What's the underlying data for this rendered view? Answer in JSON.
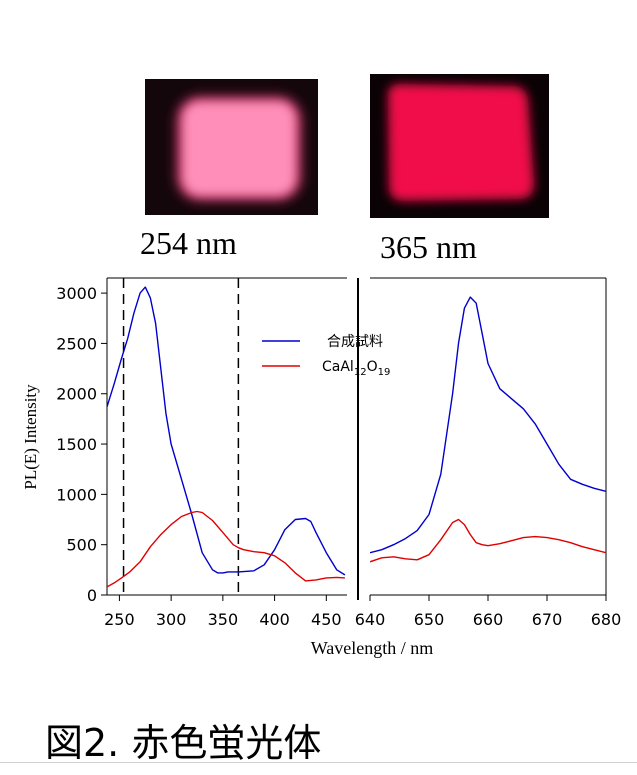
{
  "photos": [
    {
      "label": "254 nm",
      "glow_color": "#ff8fb8",
      "background": "#14070b"
    },
    {
      "label": "365 nm",
      "glow_color": "#f0104a",
      "background": "#0a0204"
    }
  ],
  "chart_data": [
    {
      "type": "line",
      "panel": "excitation",
      "ylabel": "PL(E) Intensity",
      "xlabel": "Wavelength / nm",
      "xlim": [
        238,
        470
      ],
      "ylim": [
        0,
        3150
      ],
      "x_ticks": [
        250,
        300,
        350,
        400,
        450
      ],
      "y_ticks": [
        0,
        500,
        1000,
        1500,
        2000,
        2500,
        3000
      ],
      "vlines": [
        254,
        365
      ],
      "legend_position": "top-right",
      "series": [
        {
          "name": "合成試料",
          "color": "#0000cc",
          "x": [
            238,
            245,
            252,
            258,
            264,
            270,
            275,
            280,
            285,
            290,
            295,
            300,
            310,
            320,
            330,
            340,
            345,
            350,
            355,
            360,
            365,
            380,
            390,
            400,
            410,
            420,
            430,
            435,
            440,
            450,
            460,
            468
          ],
          "y": [
            1870,
            2100,
            2350,
            2550,
            2800,
            3000,
            3060,
            2950,
            2700,
            2250,
            1800,
            1500,
            1150,
            800,
            420,
            250,
            220,
            220,
            230,
            230,
            230,
            240,
            300,
            450,
            650,
            750,
            760,
            730,
            620,
            420,
            250,
            200
          ]
        },
        {
          "name": "CaAl12O19",
          "color": "#e00000",
          "x": [
            238,
            245,
            252,
            260,
            270,
            280,
            290,
            300,
            310,
            320,
            325,
            330,
            340,
            350,
            360,
            365,
            370,
            380,
            390,
            400,
            410,
            420,
            430,
            440,
            450,
            460,
            468
          ],
          "y": [
            80,
            120,
            170,
            230,
            330,
            480,
            600,
            700,
            780,
            820,
            830,
            820,
            740,
            620,
            500,
            470,
            450,
            430,
            420,
            390,
            320,
            220,
            140,
            150,
            170,
            175,
            170
          ]
        }
      ]
    },
    {
      "type": "line",
      "panel": "emission",
      "xlabel": "Wavelength / nm",
      "xlim": [
        640,
        680
      ],
      "ylim": [
        0,
        3150
      ],
      "x_ticks": [
        640,
        650,
        660,
        670,
        680
      ],
      "series": [
        {
          "name": "合成試料",
          "color": "#0000cc",
          "x": [
            640,
            642,
            644,
            646,
            648,
            650,
            652,
            654,
            655,
            656,
            657,
            658,
            659,
            660,
            662,
            664,
            666,
            668,
            670,
            672,
            674,
            676,
            678,
            680
          ],
          "y": [
            420,
            450,
            500,
            560,
            640,
            800,
            1200,
            2000,
            2500,
            2850,
            2960,
            2900,
            2600,
            2300,
            2050,
            1950,
            1850,
            1700,
            1500,
            1300,
            1150,
            1100,
            1060,
            1030
          ]
        },
        {
          "name": "CaAl12O19",
          "color": "#e00000",
          "x": [
            640,
            642,
            644,
            646,
            648,
            650,
            652,
            654,
            655,
            656,
            657,
            658,
            659,
            660,
            662,
            664,
            666,
            668,
            670,
            672,
            674,
            676,
            678,
            680
          ],
          "y": [
            330,
            370,
            380,
            360,
            350,
            400,
            550,
            720,
            750,
            700,
            600,
            520,
            500,
            490,
            510,
            540,
            570,
            580,
            570,
            550,
            520,
            480,
            450,
            420
          ]
        }
      ]
    }
  ],
  "legend_labels": [
    "合成試料",
    "CaAl12O19"
  ],
  "legend_ca_text": {
    "prefix": "CaAl",
    "sub1": "12",
    "mid": "O",
    "sub2": "19"
  },
  "caption": "図2. 赤色蛍光体"
}
